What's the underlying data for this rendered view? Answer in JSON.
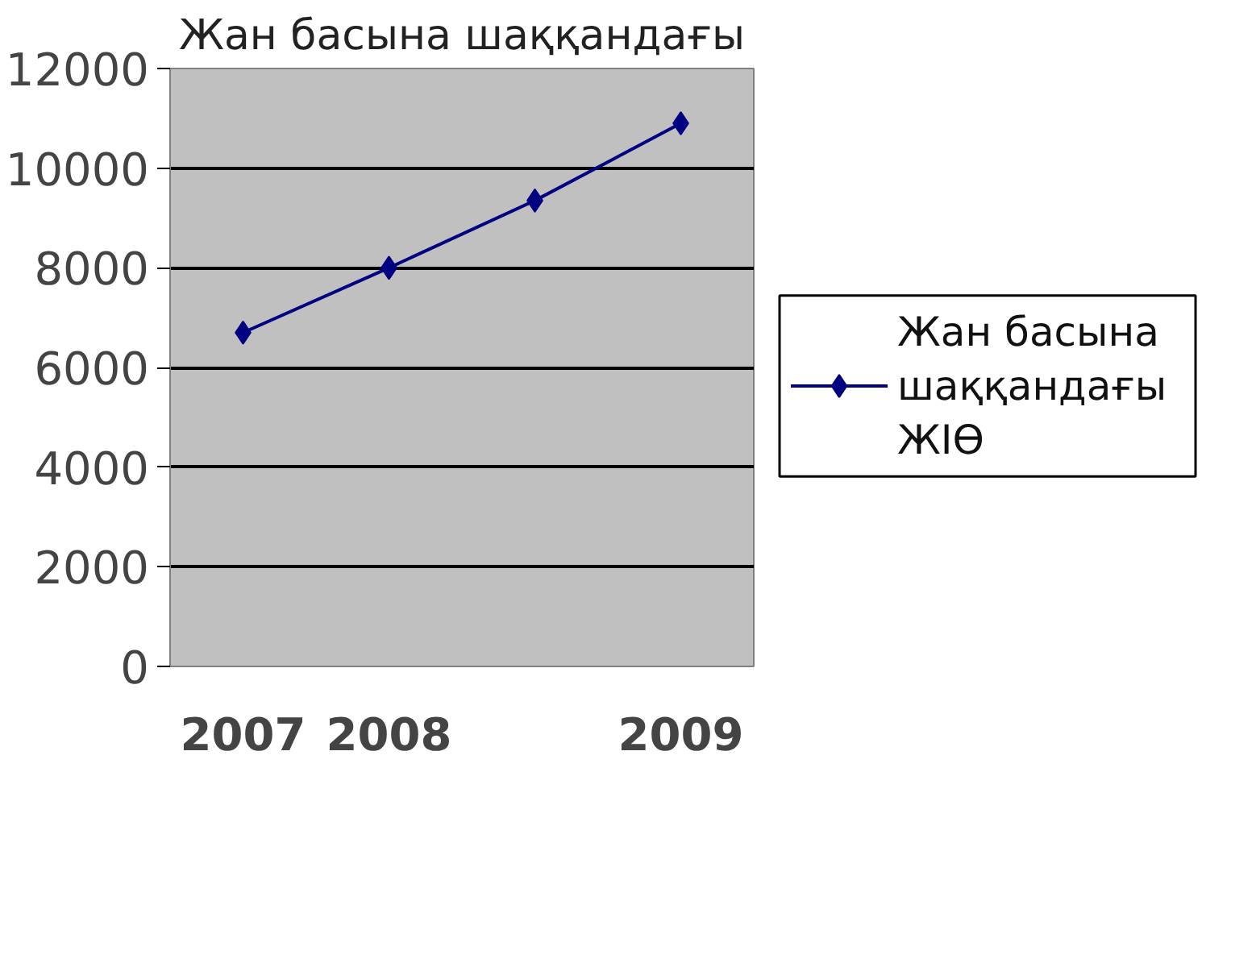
{
  "chart_data": {
    "type": "line",
    "title": "Жан басына шаққандағы",
    "categories": [
      "2007",
      "2008",
      null,
      "2009"
    ],
    "series": [
      {
        "name": "Жан басына шаққандағы ЖІӨ",
        "color": "#000080",
        "values": [
          6700,
          8000,
          9350,
          10900
        ]
      }
    ],
    "ylim": [
      0,
      12000
    ],
    "yticks": [
      0,
      2000,
      4000,
      6000,
      8000,
      10000,
      12000
    ],
    "grid": "y",
    "legend": "right",
    "marker": "diamond",
    "line_style": "solid"
  }
}
